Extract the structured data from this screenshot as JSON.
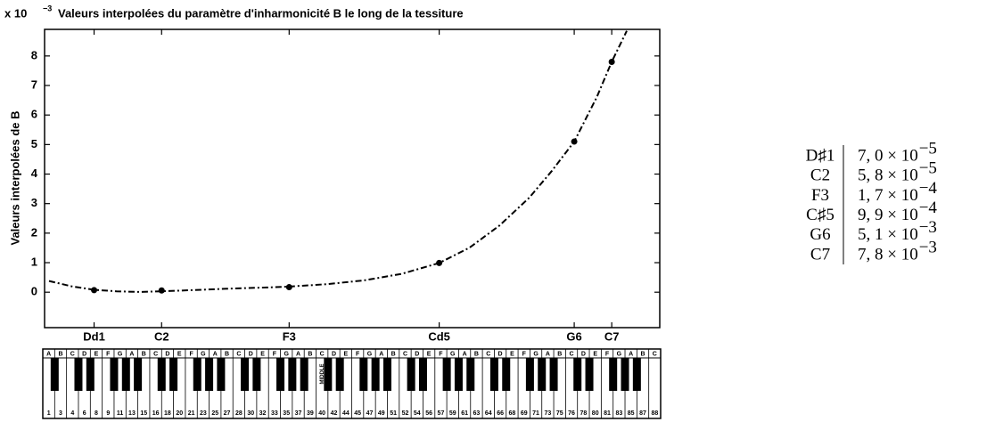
{
  "chart_data": {
    "type": "line",
    "title": "Valeurs interpolées du paramètre d'inharmonicité B le long de la tessiture",
    "y_multiplier": {
      "base": "x 10",
      "exponent": "−3"
    },
    "y_label": "Valeurs interpolées de B",
    "xlim": [
      0.4,
      82.4
    ],
    "ylim": [
      -1.2,
      8.9
    ],
    "xticks": [
      {
        "value": 7,
        "label": "Dd1"
      },
      {
        "value": 16,
        "label": "C2"
      },
      {
        "value": 33,
        "label": "F3"
      },
      {
        "value": 53,
        "label": "Cd5"
      },
      {
        "value": 71,
        "label": "G6"
      },
      {
        "value": 76,
        "label": "C7"
      }
    ],
    "yticks": [
      0,
      1,
      2,
      3,
      4,
      5,
      6,
      7,
      8
    ],
    "series": [
      {
        "color": "#000000",
        "style": "dash-dot",
        "x": [
          1,
          4,
          7,
          10,
          13,
          16,
          20,
          25,
          30,
          33,
          38,
          43,
          48,
          53,
          57,
          61,
          65,
          68,
          71,
          74,
          76,
          78
        ],
        "values": [
          0.38,
          0.2,
          0.08,
          0.03,
          0.01,
          0.03,
          0.07,
          0.12,
          0.16,
          0.19,
          0.27,
          0.4,
          0.62,
          0.99,
          1.5,
          2.25,
          3.2,
          4.1,
          5.1,
          6.6,
          7.8,
          8.85
        ]
      },
      {
        "color": "#000000",
        "style": "points",
        "x": [
          7,
          16,
          33,
          53,
          71,
          76
        ],
        "values": [
          0.07,
          0.058,
          0.17,
          0.99,
          5.1,
          7.8
        ]
      }
    ],
    "keyboard": {
      "white_keys": [
        {
          "note": "A",
          "number": 1
        },
        {
          "note": "B",
          "number": 3
        },
        {
          "note": "C",
          "number": 4
        },
        {
          "note": "D",
          "number": 6
        },
        {
          "note": "E",
          "number": 8
        },
        {
          "note": "F",
          "number": 9
        },
        {
          "note": "G",
          "number": 11
        },
        {
          "note": "A",
          "number": 13
        },
        {
          "note": "B",
          "number": 15
        },
        {
          "note": "C",
          "number": 16
        },
        {
          "note": "D",
          "number": 18
        },
        {
          "note": "E",
          "number": 20
        },
        {
          "note": "F",
          "number": 21
        },
        {
          "note": "G",
          "number": 23
        },
        {
          "note": "A",
          "number": 25
        },
        {
          "note": "B",
          "number": 27
        },
        {
          "note": "C",
          "number": 28
        },
        {
          "note": "D",
          "number": 30
        },
        {
          "note": "E",
          "number": 32
        },
        {
          "note": "F",
          "number": 33
        },
        {
          "note": "G",
          "number": 35
        },
        {
          "note": "A",
          "number": 37
        },
        {
          "note": "B",
          "number": 39
        },
        {
          "note": "C",
          "number": 40,
          "mark": "MIDDLE"
        },
        {
          "note": "D",
          "number": 42
        },
        {
          "note": "E",
          "number": 44
        },
        {
          "note": "F",
          "number": 45
        },
        {
          "note": "G",
          "number": 47
        },
        {
          "note": "A",
          "number": 49
        },
        {
          "note": "B",
          "number": 51
        },
        {
          "note": "C",
          "number": 52
        },
        {
          "note": "D",
          "number": 54
        },
        {
          "note": "E",
          "number": 56
        },
        {
          "note": "F",
          "number": 57
        },
        {
          "note": "G",
          "number": 59
        },
        {
          "note": "A",
          "number": 61
        },
        {
          "note": "B",
          "number": 63
        },
        {
          "note": "C",
          "number": 64
        },
        {
          "note": "D",
          "number": 66
        },
        {
          "note": "E",
          "number": 68
        },
        {
          "note": "F",
          "number": 69
        },
        {
          "note": "G",
          "number": 71
        },
        {
          "note": "A",
          "number": 73
        },
        {
          "note": "B",
          "number": 75
        },
        {
          "note": "C",
          "number": 76
        },
        {
          "note": "D",
          "number": 78
        },
        {
          "note": "E",
          "number": 80
        },
        {
          "note": "F",
          "number": 81
        },
        {
          "note": "G",
          "number": 83
        },
        {
          "note": "A",
          "number": 85
        },
        {
          "note": "B",
          "number": 87
        },
        {
          "note": "C",
          "number": 88
        }
      ]
    }
  },
  "table": {
    "rows": [
      {
        "note": "D♯1",
        "value": "7, 0 × 10",
        "exponent": "−5"
      },
      {
        "note": "C2",
        "value": "5, 8 × 10",
        "exponent": "−5"
      },
      {
        "note": "F3",
        "value": "1, 7 × 10",
        "exponent": "−4"
      },
      {
        "note": "C♯5",
        "value": "9, 9 × 10",
        "exponent": "−4"
      },
      {
        "note": "G6",
        "value": "5, 1 × 10",
        "exponent": "−3"
      },
      {
        "note": "C7",
        "value": "7, 8 × 10",
        "exponent": "−3"
      }
    ]
  }
}
